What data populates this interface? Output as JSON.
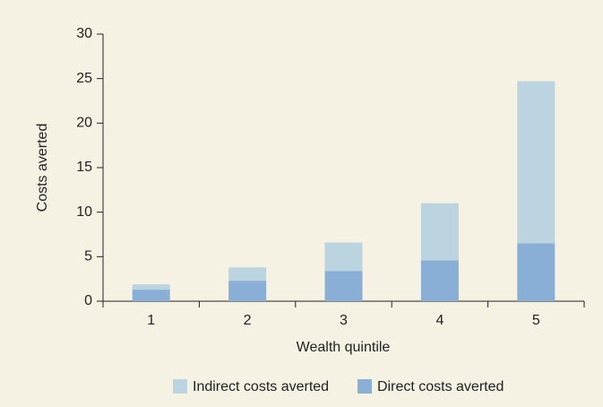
{
  "chart_data": {
    "type": "stacked_bar",
    "x_label": "Wealth quintile",
    "y_label": "Costs averted",
    "categories": [
      "1",
      "2",
      "3",
      "4",
      "5"
    ],
    "series": [
      {
        "name": "Indirect costs averted",
        "color": "#bcd3e0",
        "values": [
          0.6,
          1.5,
          3.2,
          6.4,
          18.2
        ]
      },
      {
        "name": "Direct costs averted",
        "color": "#8aafd6",
        "values": [
          1.3,
          2.3,
          3.4,
          4.6,
          6.5
        ]
      }
    ],
    "ylim": [
      0,
      30
    ],
    "yticks": [
      0,
      5,
      10,
      15,
      20,
      25,
      30
    ],
    "grid": false,
    "legend": "bottom"
  }
}
